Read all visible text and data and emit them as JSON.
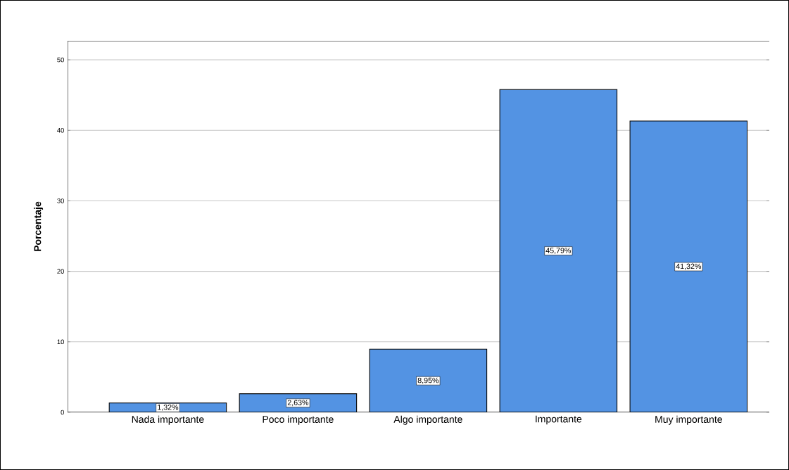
{
  "chart_data": {
    "type": "bar",
    "ylabel": "Porcentaje",
    "categories": [
      "Nada importante",
      "Poco importante",
      "Algo importante",
      "Importante",
      "Muy importante"
    ],
    "values": [
      1.32,
      2.63,
      8.95,
      45.79,
      41.32
    ],
    "value_labels": [
      "1,32%",
      "2,63%",
      "8,95%",
      "45,79%",
      "41,32%"
    ],
    "color": "#5393e3",
    "ylim": [
      0,
      52.7
    ],
    "yticks": [
      0,
      10,
      20,
      30,
      40,
      50
    ],
    "grid": "y"
  }
}
